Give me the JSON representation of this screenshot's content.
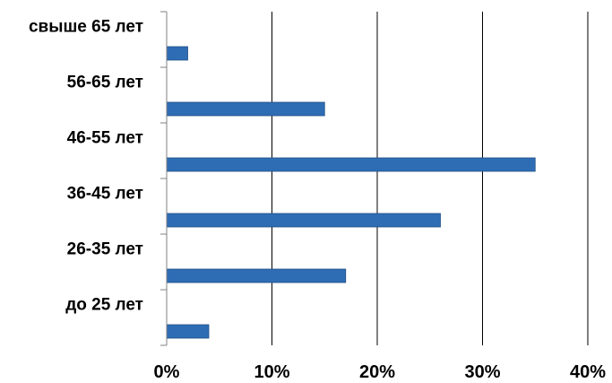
{
  "chart_data": {
    "type": "bar",
    "orientation": "horizontal",
    "categories": [
      "до 25 лет",
      "26-35 лет",
      "36-45 лет",
      "46-55 лет",
      "56-65 лет",
      "свыше 65 лет"
    ],
    "values": [
      4,
      17,
      26,
      35,
      15,
      2
    ],
    "value_unit": "%",
    "xlim": [
      0,
      40
    ],
    "x_ticks": [
      "0%",
      "10%",
      "20%",
      "30%",
      "40%"
    ],
    "grid": "vertical",
    "legend": "none",
    "bar_color": "#2e6db4"
  }
}
